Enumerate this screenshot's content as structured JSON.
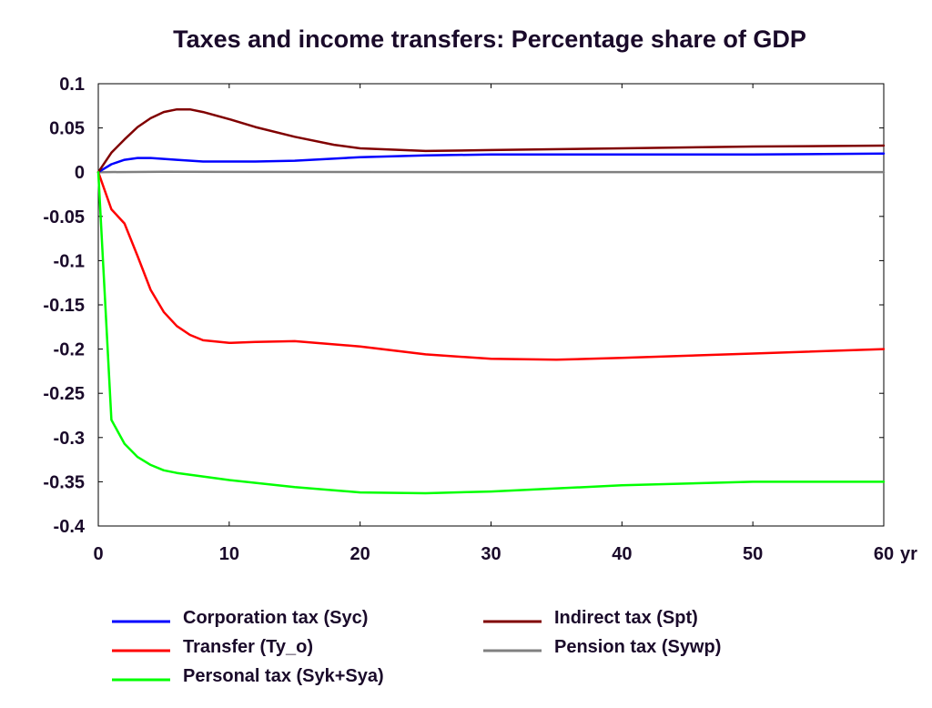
{
  "chart_data": {
    "type": "line",
    "title": "Taxes and income transfers: Percentage share of GDP",
    "xlabel": "",
    "ylabel": "",
    "x_unit_label": "yr",
    "xlim": [
      0,
      60
    ],
    "ylim": [
      -0.4,
      0.1
    ],
    "x_ticks": [
      "0",
      "10",
      "20",
      "30",
      "40",
      "50",
      "60"
    ],
    "y_ticks": [
      "0.1",
      "0.05",
      "0",
      "-0.05",
      "-0.1",
      "-0.15",
      "-0.2",
      "-0.25",
      "-0.3",
      "-0.35",
      "-0.4"
    ],
    "grid": false,
    "legend_position": "bottom",
    "series": [
      {
        "name": "Corporation tax (Syc)",
        "color": "#0000ff",
        "x": [
          0,
          1,
          2,
          3,
          4,
          5,
          6,
          8,
          10,
          12,
          15,
          20,
          25,
          30,
          40,
          50,
          60
        ],
        "y": [
          0,
          0.009,
          0.014,
          0.016,
          0.016,
          0.015,
          0.014,
          0.012,
          0.012,
          0.012,
          0.013,
          0.017,
          0.019,
          0.02,
          0.02,
          0.02,
          0.021
        ]
      },
      {
        "name": "Transfer (Ty_o)",
        "color": "#ff0000",
        "x": [
          0,
          1,
          2,
          3,
          4,
          5,
          6,
          7,
          8,
          10,
          12,
          15,
          20,
          25,
          30,
          35,
          40,
          50,
          60
        ],
        "y": [
          0,
          -0.042,
          -0.058,
          -0.095,
          -0.133,
          -0.158,
          -0.174,
          -0.184,
          -0.19,
          -0.193,
          -0.192,
          -0.191,
          -0.197,
          -0.206,
          -0.211,
          -0.212,
          -0.21,
          -0.205,
          -0.2
        ]
      },
      {
        "name": "Personal tax (Syk+Sya)",
        "color": "#00ff00",
        "x": [
          0,
          1,
          2,
          3,
          4,
          5,
          6,
          8,
          10,
          15,
          20,
          25,
          30,
          40,
          50,
          60
        ],
        "y": [
          0,
          -0.28,
          -0.307,
          -0.322,
          -0.331,
          -0.337,
          -0.34,
          -0.344,
          -0.348,
          -0.356,
          -0.362,
          -0.363,
          -0.361,
          -0.354,
          -0.35,
          -0.35
        ]
      },
      {
        "name": "Indirect tax (Spt)",
        "color": "#800000",
        "x": [
          0,
          1,
          2,
          3,
          4,
          5,
          6,
          7,
          8,
          10,
          12,
          15,
          18,
          20,
          25,
          30,
          40,
          50,
          60
        ],
        "y": [
          0,
          0.022,
          0.037,
          0.051,
          0.061,
          0.068,
          0.071,
          0.071,
          0.068,
          0.06,
          0.051,
          0.04,
          0.031,
          0.027,
          0.024,
          0.025,
          0.027,
          0.029,
          0.03
        ]
      },
      {
        "name": "Pension tax (Sywp)",
        "color": "#808080",
        "x": [
          0,
          5,
          10,
          20,
          30,
          40,
          50,
          60
        ],
        "y": [
          0,
          0.0005,
          0.0003,
          0.0002,
          0.0001,
          0.0001,
          0.0001,
          0.0001
        ]
      }
    ]
  }
}
